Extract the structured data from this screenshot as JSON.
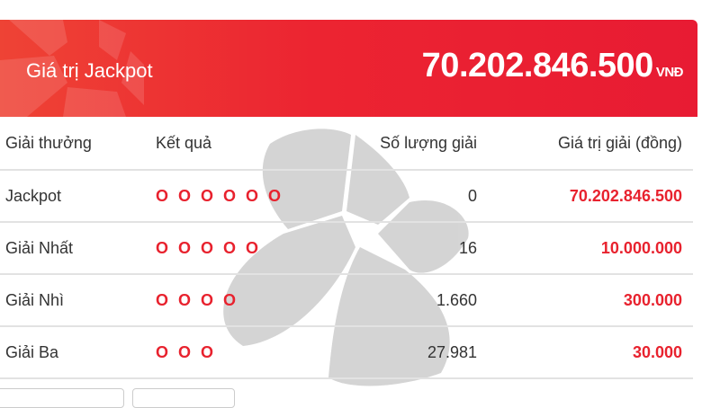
{
  "jackpot": {
    "label": "Giá trị Jackpot",
    "value": "70.202.846.500",
    "currency": "VNĐ"
  },
  "table": {
    "headers": [
      "Giải thưởng",
      "Kết quả",
      "Số lượng giải",
      "Giá trị giải (đồng)"
    ],
    "rows": [
      {
        "prize": "Jackpot",
        "result": "O O O O O O",
        "count": "0",
        "value": "70.202.846.500"
      },
      {
        "prize": "Giải Nhất",
        "result": "O O O O O",
        "count": "16",
        "value": "10.000.000"
      },
      {
        "prize": "Giải Nhì",
        "result": "O O O O",
        "count": "1.660",
        "value": "300.000"
      },
      {
        "prize": "Giải Ba",
        "result": "O O O",
        "count": "27.981",
        "value": "30.000"
      }
    ]
  },
  "colors": {
    "accent": "#e8222e",
    "banner": "#ec2431"
  }
}
